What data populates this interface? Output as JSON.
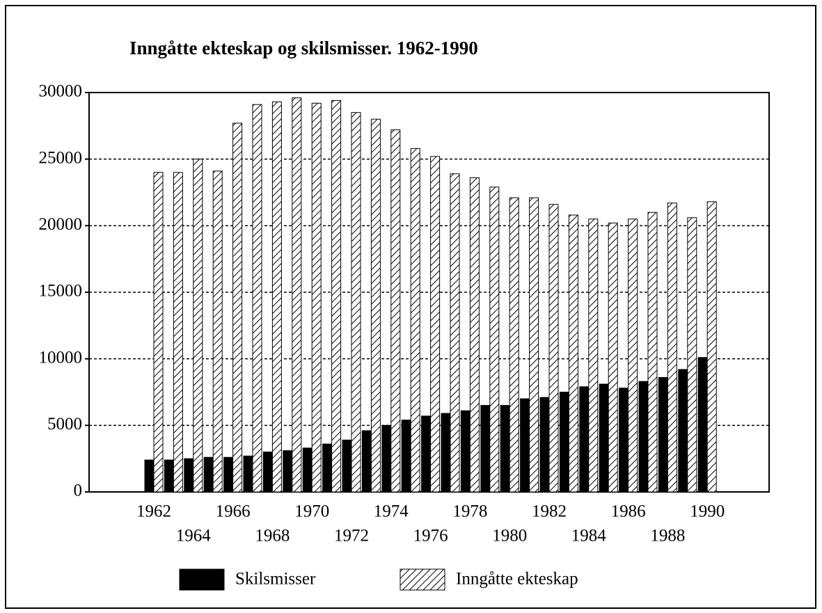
{
  "chart_data": {
    "type": "bar",
    "title": "Inngåtte ekteskap og skilsmisser. 1962-1990",
    "categories": [
      "1962",
      null,
      "1964",
      null,
      "1966",
      null,
      "1968",
      null,
      "1970",
      null,
      "1972",
      null,
      "1974",
      null,
      "1976",
      null,
      "1978",
      null,
      "1980",
      null,
      "1982",
      null,
      "1984",
      null,
      "1986",
      null,
      "1988",
      null,
      "1990"
    ],
    "series": [
      {
        "name": "Skilsmisser",
        "color": "#000000",
        "hatch": false,
        "values": [
          2400,
          2400,
          2500,
          2600,
          2600,
          2700,
          3000,
          3100,
          3300,
          3600,
          3900,
          4600,
          5000,
          5400,
          5700,
          5900,
          6100,
          6500,
          6500,
          7000,
          7100,
          7500,
          7900,
          8100,
          7800,
          8300,
          8600,
          9200,
          10100
        ]
      },
      {
        "name": "Inngåtte ekteskap",
        "color": "#000000",
        "hatch": true,
        "values": [
          24000,
          24000,
          25000,
          24100,
          27700,
          29100,
          29300,
          29600,
          29200,
          29400,
          28500,
          28000,
          27200,
          25800,
          25200,
          23900,
          23600,
          22900,
          22100,
          22100,
          21600,
          20800,
          20500,
          20200,
          20500,
          21000,
          21700,
          20600,
          21800
        ]
      }
    ],
    "ylim": [
      0,
      30000
    ],
    "yticks": [
      0,
      5000,
      10000,
      15000,
      20000,
      25000,
      30000
    ],
    "grid": true
  }
}
